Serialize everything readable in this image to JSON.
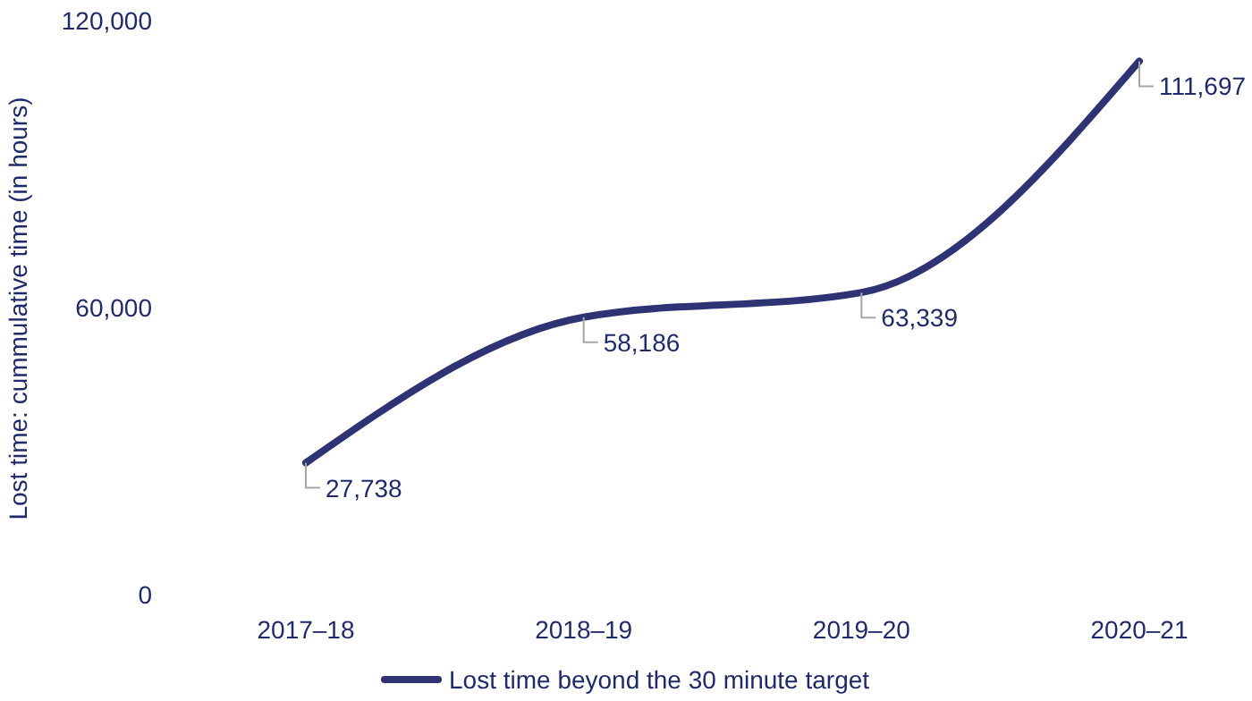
{
  "chart_data": {
    "type": "line",
    "ylabel": "Lost time: cummulative time (in hours)",
    "categories": [
      "2017–18",
      "2018–19",
      "2019–20",
      "2020–21"
    ],
    "series": [
      {
        "name": "Lost time beyond the 30 minute target",
        "color": "#2e3374",
        "values": [
          27738,
          58186,
          63339,
          111697
        ],
        "value_labels": [
          "27,738",
          "58,186",
          "63,339",
          "111,697"
        ]
      }
    ],
    "ylim": [
      0,
      120000
    ],
    "yticks": [
      0,
      {
        "value": 60000,
        "label": "60,000"
      },
      {
        "value": 120000,
        "label": "120,000"
      }
    ],
    "grid": false,
    "legend": "bottom",
    "marker": "none",
    "line_style": "solid"
  }
}
